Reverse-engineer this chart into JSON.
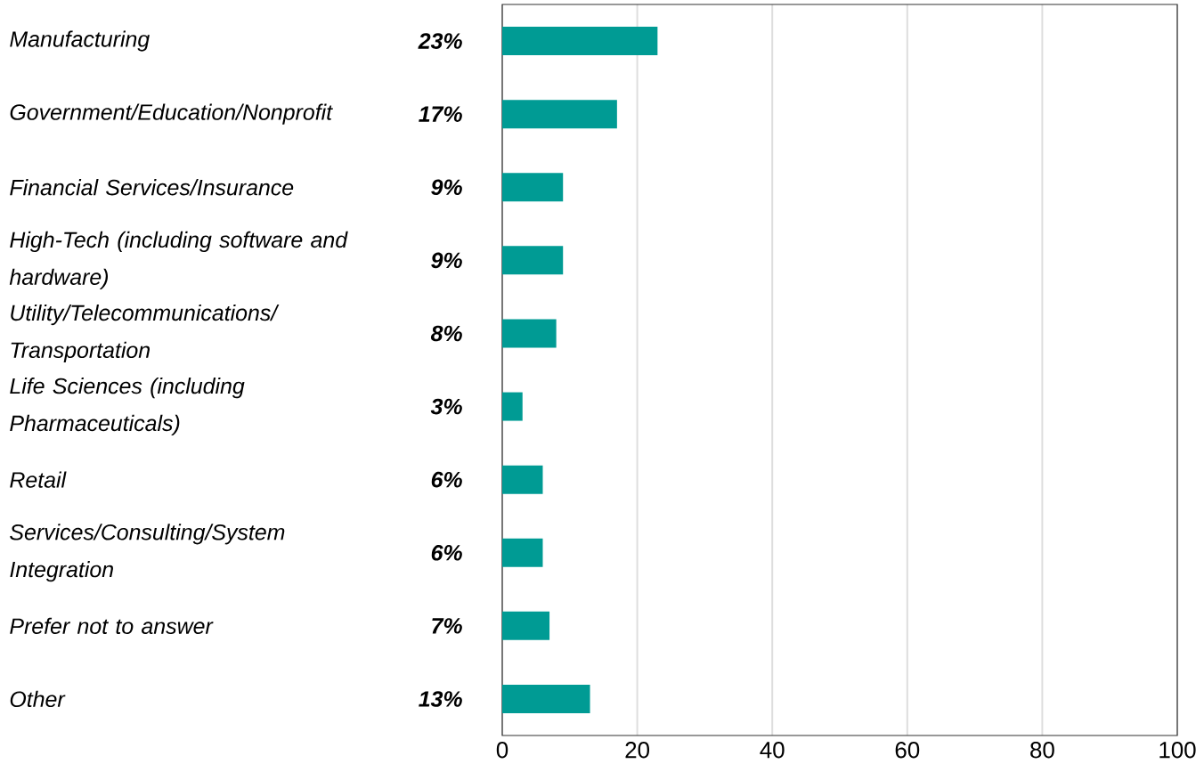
{
  "chart_data": {
    "type": "bar",
    "orientation": "horizontal",
    "categories": [
      "Manufacturing",
      "Government/Education/Nonprofit",
      "Financial Services/Insurance",
      "High-Tech (including software and hardware)",
      "Utility/Telecommunications/ Transportation",
      "Life Sciences (including Pharmaceuticals)",
      "Retail",
      "Services/Consulting/System Integration",
      "Prefer not to answer",
      "Other"
    ],
    "values": [
      23,
      17,
      9,
      9,
      8,
      3,
      6,
      6,
      7,
      13
    ],
    "value_labels": [
      "23%",
      "17%",
      "9%",
      "9%",
      "8%",
      "3%",
      "6%",
      "6%",
      "7%",
      "13%"
    ],
    "color": "#009b94",
    "xlim": [
      0,
      100
    ],
    "xticks": [
      0,
      20,
      40,
      60,
      80,
      100
    ],
    "grid": "x"
  }
}
